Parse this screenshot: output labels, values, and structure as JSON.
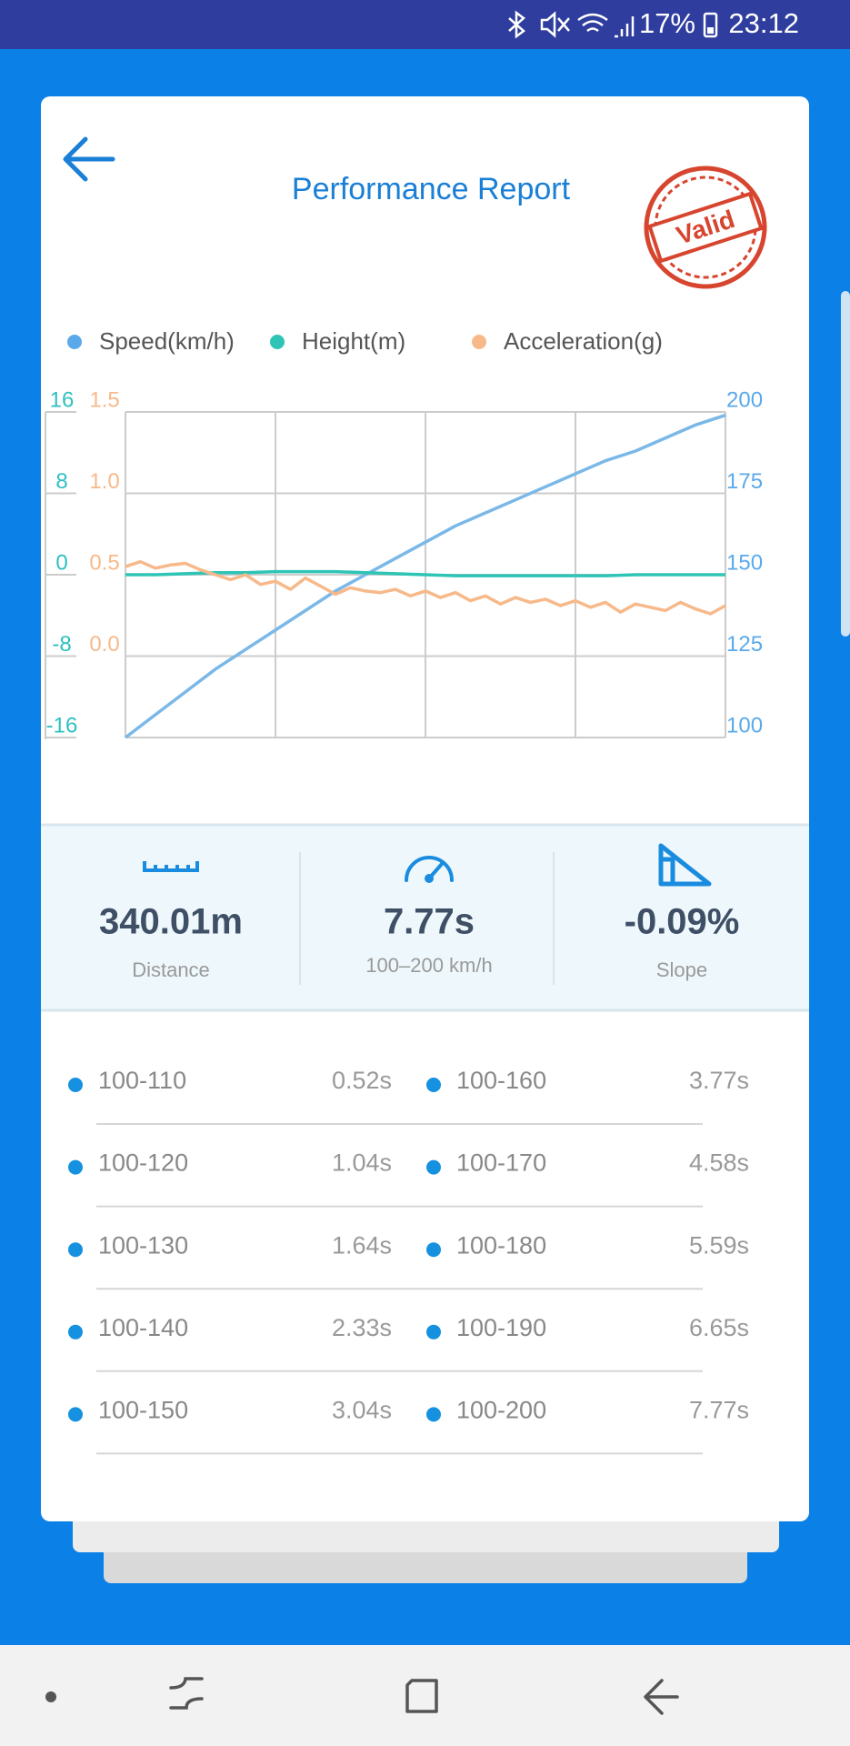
{
  "status_bar": {
    "battery": "17%",
    "time": "23:12"
  },
  "header": {
    "title": "Performance Report",
    "stamp": "Valid"
  },
  "chart_data": {
    "type": "line",
    "series": [
      {
        "name": "Speed(km/h)",
        "color": "#7ab8e8",
        "legend_color": "#5aa9ea",
        "axis": "y2",
        "values": [
          100,
          107,
          114,
          121,
          127,
          133,
          139,
          145,
          150,
          155,
          160,
          165,
          169,
          173,
          177,
          181,
          185,
          188,
          192,
          196,
          199
        ]
      },
      {
        "name": "Height(m)",
        "color": "#2ec4b6",
        "axis": "y",
        "values": [
          0,
          0,
          0.1,
          0.2,
          0.2,
          0.3,
          0.3,
          0.3,
          0.2,
          0.1,
          0,
          -0.1,
          -0.1,
          -0.1,
          -0.1,
          -0.1,
          -0.1,
          0,
          0,
          0,
          0
        ]
      },
      {
        "name": "Acceleration(g)",
        "color": "#f7b98a",
        "axis": "y3",
        "values": [
          0.55,
          0.58,
          0.54,
          0.56,
          0.57,
          0.53,
          0.5,
          0.47,
          0.5,
          0.44,
          0.46,
          0.41,
          0.48,
          0.43,
          0.38,
          0.42,
          0.4,
          0.39,
          0.41,
          0.37,
          0.4,
          0.36,
          0.39,
          0.34,
          0.37,
          0.32,
          0.36,
          0.33,
          0.35,
          0.31,
          0.34,
          0.3,
          0.33,
          0.27,
          0.32,
          0.3,
          0.28,
          0.33,
          0.29,
          0.26,
          0.31
        ]
      }
    ],
    "ylim": [
      -16,
      16
    ],
    "yticks": [
      -16,
      -8,
      0,
      8,
      16
    ],
    "ytick_color": "#2ebfc0",
    "y3lim": [
      -0.5,
      1.5
    ],
    "y3ticks": [
      {
        "value": 0,
        "label": "0.0"
      },
      0.5,
      {
        "value": 1,
        "label": "1.0"
      },
      1.5
    ],
    "y3tick_color": "#f7b98a",
    "y2lim": [
      100,
      200
    ],
    "y2ticks": [
      100,
      125,
      150,
      175,
      200
    ],
    "y2tick_color": "#5aa9ea",
    "grid": true
  },
  "stats": [
    {
      "value": "340.01m",
      "label": "Distance"
    },
    {
      "value": "7.77s",
      "label": "100–200 km/h"
    },
    {
      "value": "-0.09%",
      "label": "Slope"
    }
  ],
  "splits": [
    {
      "range": "100-110",
      "time": "0.52s"
    },
    {
      "range": "100-120",
      "time": "1.04s"
    },
    {
      "range": "100-130",
      "time": "1.64s"
    },
    {
      "range": "100-140",
      "time": "2.33s"
    },
    {
      "range": "100-150",
      "time": "3.04s"
    },
    {
      "range": "100-160",
      "time": "3.77s"
    },
    {
      "range": "100-170",
      "time": "4.58s"
    },
    {
      "range": "100-180",
      "time": "5.59s"
    },
    {
      "range": "100-190",
      "time": "6.65s"
    },
    {
      "range": "100-200",
      "time": "7.77s"
    }
  ]
}
